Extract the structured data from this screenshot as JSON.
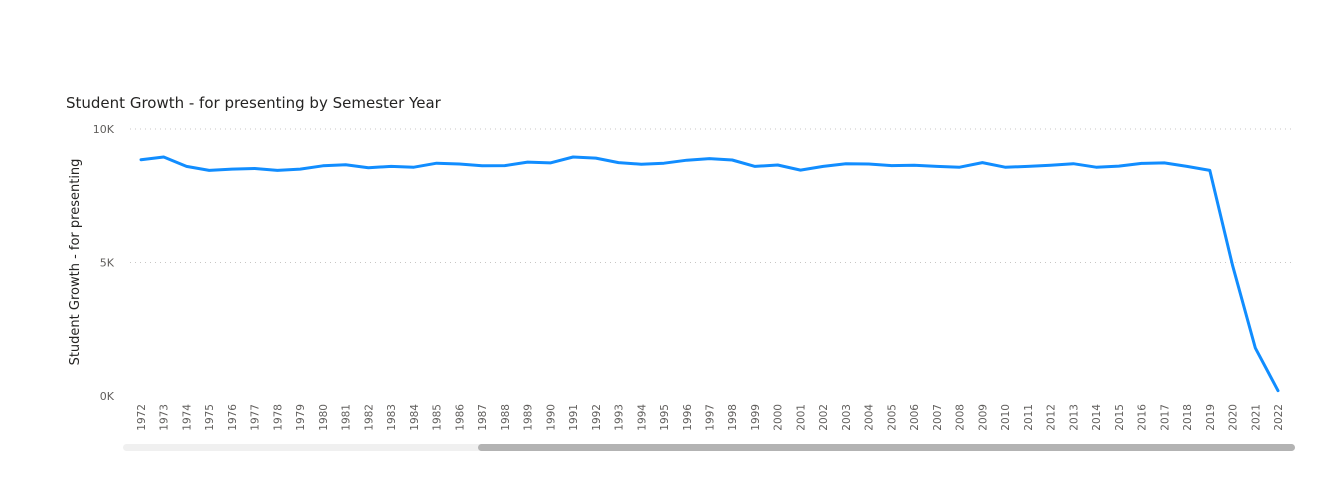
{
  "colors": {
    "line": "#118DFF",
    "grid": "#c8c6c4",
    "scroll_track": "#f0f0f0",
    "scroll_thumb": "#b3b3b3"
  },
  "chart_data": {
    "type": "line",
    "title": "Student Growth - for presenting by Semester Year",
    "xlabel": "",
    "ylabel": "Student Growth - for presenting",
    "ylim": [
      0,
      10000
    ],
    "y_ticks": [
      {
        "value": 0,
        "label": "0K"
      },
      {
        "value": 5000,
        "label": "5K"
      },
      {
        "value": 10000,
        "label": "10K"
      }
    ],
    "grid": true,
    "x": [
      "1972",
      "1973",
      "1974",
      "1975",
      "1976",
      "1977",
      "1978",
      "1979",
      "1980",
      "1981",
      "1982",
      "1983",
      "1984",
      "1985",
      "1986",
      "1987",
      "1988",
      "1989",
      "1990",
      "1991",
      "1992",
      "1993",
      "1994",
      "1995",
      "1996",
      "1997",
      "1998",
      "1999",
      "2000",
      "2001",
      "2002",
      "2003",
      "2004",
      "2005",
      "2006",
      "2007",
      "2008",
      "2009",
      "2010",
      "2011",
      "2012",
      "2013",
      "2014",
      "2015",
      "2016",
      "2017",
      "2018",
      "2019",
      "2020",
      "2021",
      "2022"
    ],
    "series": [
      {
        "values": [
          8850,
          8950,
          8600,
          8450,
          8500,
          8520,
          8450,
          8500,
          8620,
          8660,
          8550,
          8600,
          8570,
          8720,
          8690,
          8620,
          8630,
          8760,
          8730,
          8950,
          8910,
          8740,
          8680,
          8720,
          8830,
          8890,
          8840,
          8600,
          8650,
          8460,
          8600,
          8700,
          8690,
          8630,
          8640,
          8600,
          8570,
          8740,
          8570,
          8600,
          8640,
          8700,
          8570,
          8610,
          8710,
          8730,
          8600,
          8450,
          4900,
          1800,
          200
        ]
      }
    ]
  }
}
